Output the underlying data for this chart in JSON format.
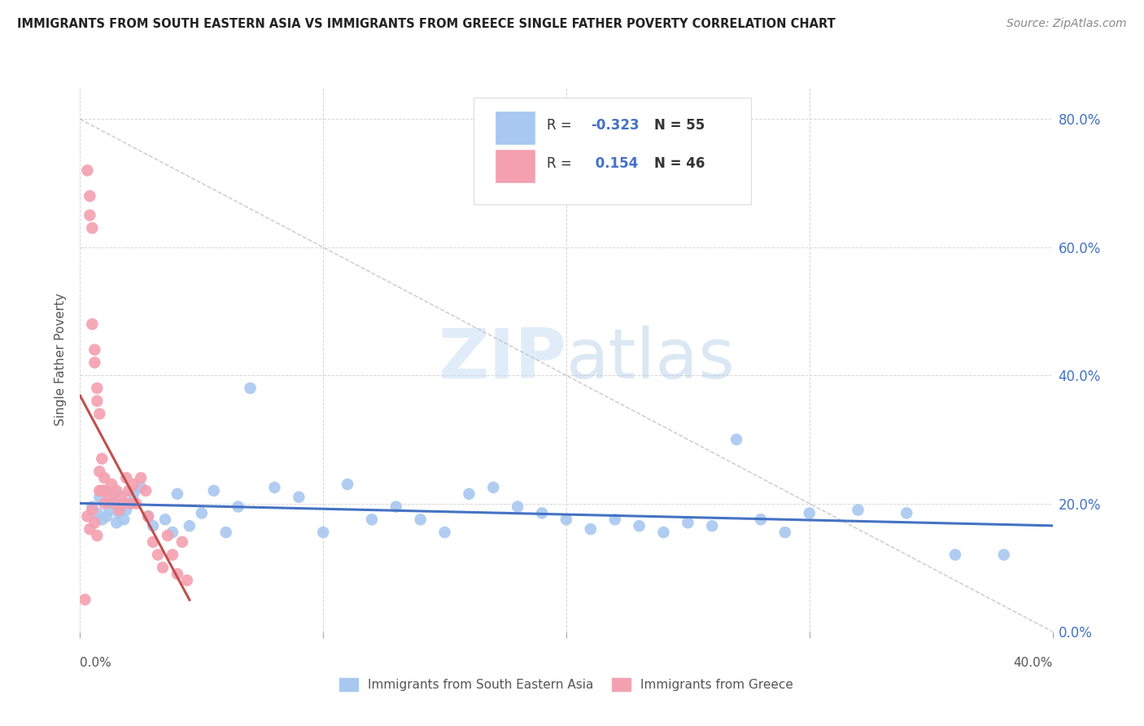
{
  "title": "IMMIGRANTS FROM SOUTH EASTERN ASIA VS IMMIGRANTS FROM GREECE SINGLE FATHER POVERTY CORRELATION CHART",
  "source": "Source: ZipAtlas.com",
  "ylabel": "Single Father Poverty",
  "x_min": 0.0,
  "x_max": 0.4,
  "y_min": 0.0,
  "y_max": 0.85,
  "ytick_labels": [
    "0.0%",
    "20.0%",
    "40.0%",
    "60.0%",
    "80.0%"
  ],
  "ytick_vals": [
    0.0,
    0.2,
    0.4,
    0.6,
    0.8
  ],
  "r_blue": -0.323,
  "n_blue": 55,
  "r_pink": 0.154,
  "n_pink": 46,
  "legend_label_blue": "Immigrants from South Eastern Asia",
  "legend_label_pink": "Immigrants from Greece",
  "color_blue": "#a8c8f0",
  "color_pink": "#f4a0b0",
  "line_color_blue": "#4472c4",
  "line_color_pink": "#c0504d",
  "watermark_zip": "ZIP",
  "watermark_atlas": "atlas",
  "background_color": "#ffffff",
  "blue_x": [
    0.005,
    0.007,
    0.008,
    0.009,
    0.01,
    0.011,
    0.012,
    0.013,
    0.014,
    0.015,
    0.016,
    0.017,
    0.018,
    0.019,
    0.02,
    0.022,
    0.025,
    0.028,
    0.03,
    0.035,
    0.038,
    0.04,
    0.045,
    0.05,
    0.055,
    0.06,
    0.065,
    0.07,
    0.08,
    0.09,
    0.1,
    0.11,
    0.12,
    0.13,
    0.14,
    0.15,
    0.16,
    0.17,
    0.18,
    0.19,
    0.2,
    0.21,
    0.22,
    0.23,
    0.24,
    0.25,
    0.26,
    0.27,
    0.28,
    0.29,
    0.3,
    0.32,
    0.34,
    0.36,
    0.38
  ],
  "blue_y": [
    0.195,
    0.185,
    0.21,
    0.175,
    0.22,
    0.18,
    0.19,
    0.2,
    0.215,
    0.17,
    0.185,
    0.195,
    0.175,
    0.19,
    0.2,
    0.215,
    0.225,
    0.18,
    0.165,
    0.175,
    0.155,
    0.215,
    0.165,
    0.185,
    0.22,
    0.155,
    0.195,
    0.38,
    0.225,
    0.21,
    0.155,
    0.23,
    0.175,
    0.195,
    0.175,
    0.155,
    0.215,
    0.225,
    0.195,
    0.185,
    0.175,
    0.16,
    0.175,
    0.165,
    0.155,
    0.17,
    0.165,
    0.3,
    0.175,
    0.155,
    0.185,
    0.19,
    0.185,
    0.12,
    0.12
  ],
  "pink_x": [
    0.003,
    0.004,
    0.004,
    0.005,
    0.005,
    0.006,
    0.006,
    0.007,
    0.007,
    0.008,
    0.008,
    0.009,
    0.009,
    0.01,
    0.01,
    0.011,
    0.012,
    0.013,
    0.014,
    0.015,
    0.016,
    0.017,
    0.018,
    0.019,
    0.02,
    0.021,
    0.022,
    0.023,
    0.025,
    0.027,
    0.028,
    0.03,
    0.032,
    0.034,
    0.036,
    0.038,
    0.04,
    0.042,
    0.044,
    0.002,
    0.003,
    0.004,
    0.005,
    0.006,
    0.007,
    0.008
  ],
  "pink_y": [
    0.72,
    0.68,
    0.65,
    0.63,
    0.48,
    0.44,
    0.42,
    0.38,
    0.36,
    0.34,
    0.25,
    0.27,
    0.22,
    0.24,
    0.2,
    0.22,
    0.21,
    0.23,
    0.2,
    0.22,
    0.19,
    0.21,
    0.2,
    0.24,
    0.22,
    0.2,
    0.23,
    0.2,
    0.24,
    0.22,
    0.18,
    0.14,
    0.12,
    0.1,
    0.15,
    0.12,
    0.09,
    0.14,
    0.08,
    0.05,
    0.18,
    0.16,
    0.19,
    0.17,
    0.15,
    0.22
  ]
}
